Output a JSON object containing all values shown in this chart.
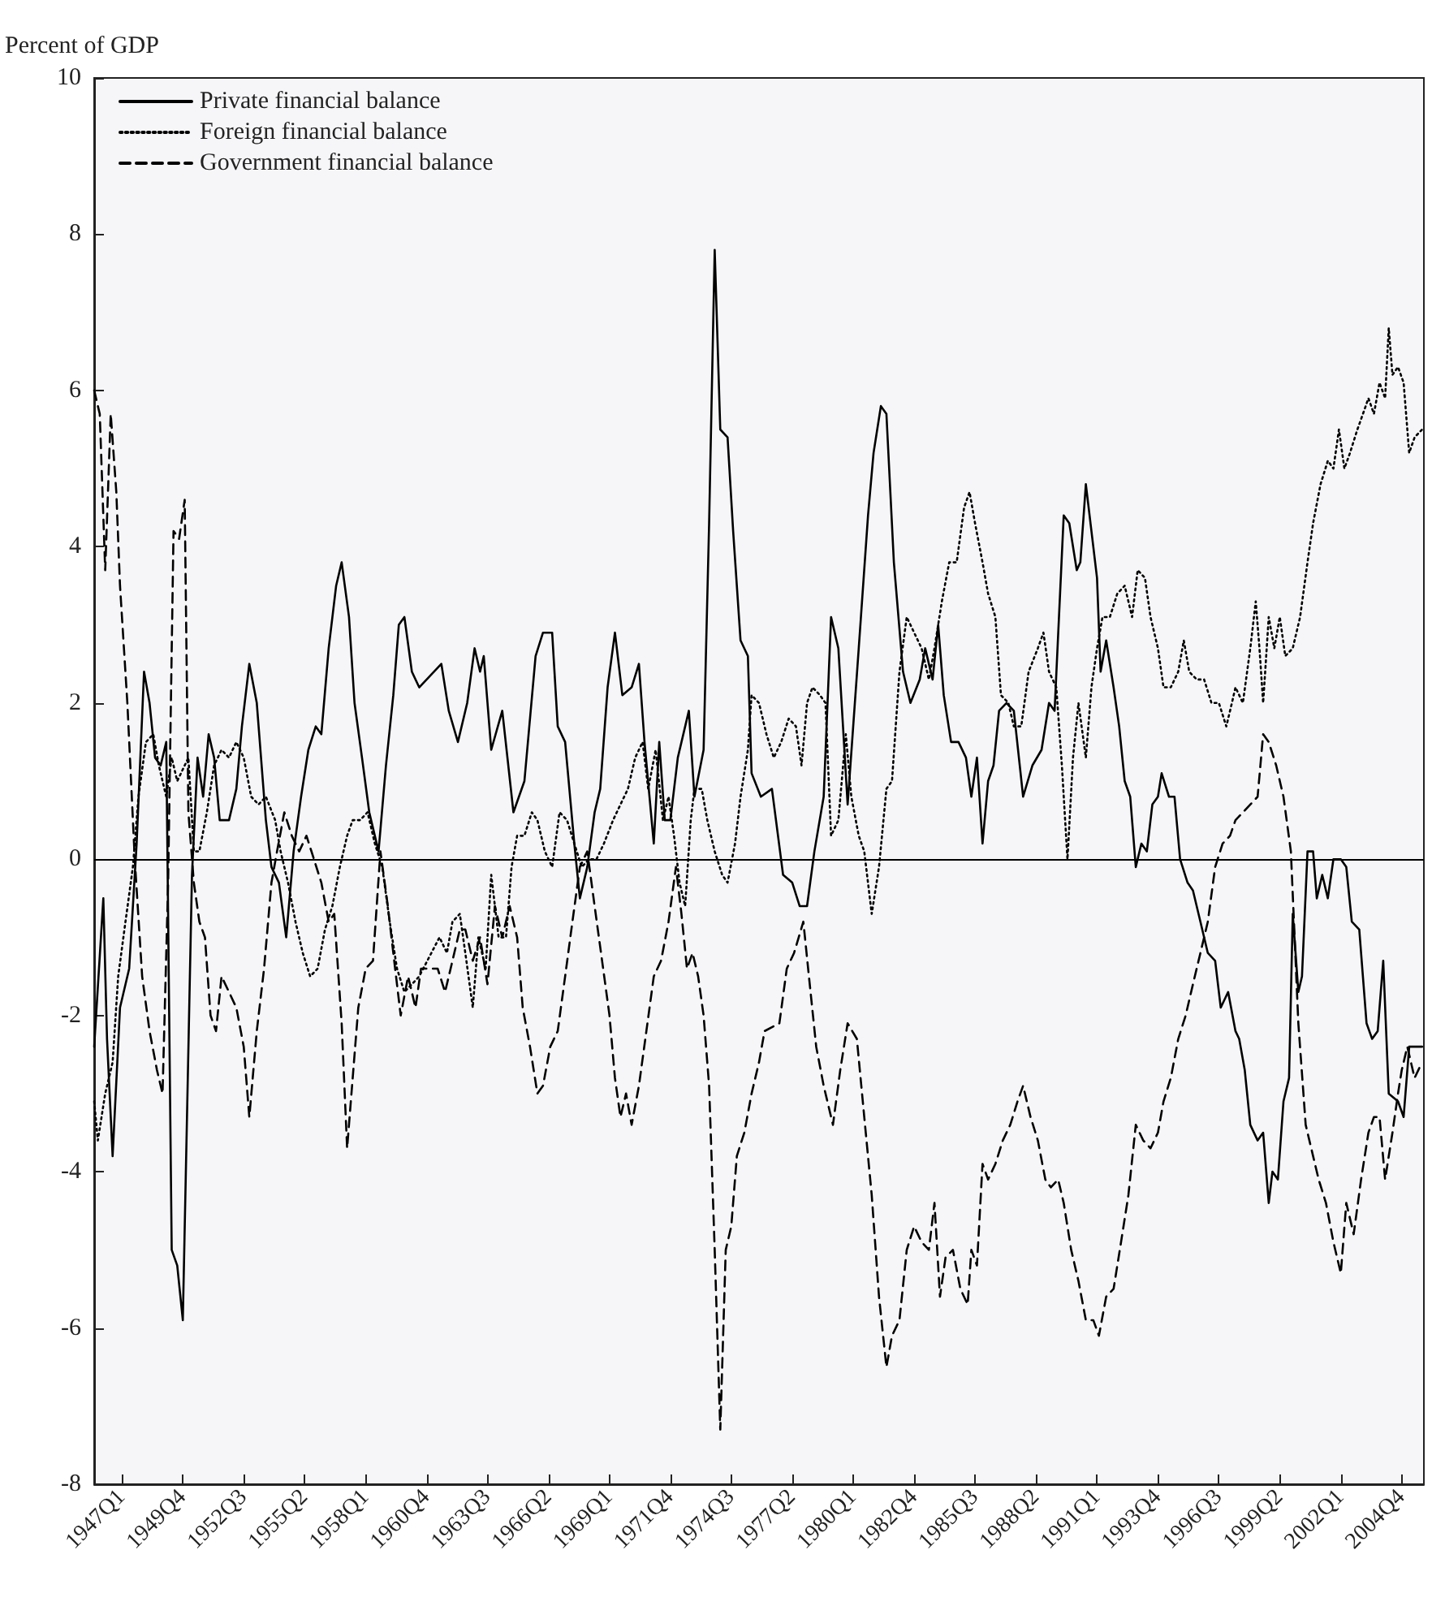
{
  "chart_data": {
    "type": "line",
    "ylabel": "Percent of GDP",
    "xlim": [
      "1945-10",
      "2005-10"
    ],
    "ylim": [
      -8,
      10
    ],
    "yticks": [
      -8,
      -6,
      -4,
      -2,
      0,
      2,
      4,
      6,
      8,
      10
    ],
    "xticks": [
      {
        "value": "1947-01",
        "label": "1947Q1"
      },
      {
        "value": "1949-10",
        "label": "1949Q4"
      },
      {
        "value": "1952-07",
        "label": "1952Q3"
      },
      {
        "value": "1955-04",
        "label": "1955Q2"
      },
      {
        "value": "1958-01",
        "label": "1958Q1"
      },
      {
        "value": "1960-10",
        "label": "1960Q4"
      },
      {
        "value": "1963-07",
        "label": "1963Q3"
      },
      {
        "value": "1966-04",
        "label": "1966Q2"
      },
      {
        "value": "1969-01",
        "label": "1969Q1"
      },
      {
        "value": "1971-10",
        "label": "1971Q4"
      },
      {
        "value": "1974-07",
        "label": "1974Q3"
      },
      {
        "value": "1977-04",
        "label": "1977Q2"
      },
      {
        "value": "1980-01",
        "label": "1980Q1"
      },
      {
        "value": "1982-10",
        "label": "1982Q4"
      },
      {
        "value": "1985-07",
        "label": "1985Q3"
      },
      {
        "value": "1988-04",
        "label": "1988Q2"
      },
      {
        "value": "1991-01",
        "label": "1991Q1"
      },
      {
        "value": "1993-10",
        "label": "1993Q4"
      },
      {
        "value": "1996-07",
        "label": "1996Q3"
      },
      {
        "value": "1999-04",
        "label": "1999Q2"
      },
      {
        "value": "2002-01",
        "label": "2002Q1"
      },
      {
        "value": "2004-10",
        "label": "2004Q4"
      }
    ],
    "grid": false,
    "legend": "top left",
    "marker": "none",
    "ref_lines": [
      {
        "axis": "y",
        "value": 0,
        "color": "#000000",
        "line_style": "solid"
      }
    ],
    "series": [
      {
        "name": "Private financial balance",
        "color": "#000000",
        "line_style": "solid",
        "x": [
          "1945-10",
          "1946-03",
          "1946-05",
          "1946-08",
          "1946-12",
          "1947-05",
          "1947-09",
          "1948-01",
          "1948-04",
          "1948-07",
          "1948-10",
          "1949-01",
          "1949-04",
          "1949-07",
          "1949-10",
          "1950-03",
          "1950-06",
          "1950-09",
          "1950-12",
          "1951-03",
          "1951-06",
          "1951-11",
          "1952-03",
          "1952-06",
          "1952-10",
          "1953-02",
          "1953-07",
          "1953-10",
          "1954-02",
          "1954-06",
          "1954-10",
          "1955-02",
          "1955-06",
          "1955-10",
          "1956-01",
          "1956-05",
          "1956-09",
          "1956-12",
          "1957-04",
          "1957-07",
          "1957-11",
          "1958-03",
          "1958-08",
          "1958-12",
          "1959-04",
          "1959-07",
          "1959-10",
          "1960-02",
          "1960-06",
          "1961-06",
          "1961-10",
          "1962-03",
          "1962-08",
          "1962-12",
          "1963-03",
          "1963-05",
          "1963-09",
          "1964-03",
          "1964-09",
          "1965-03",
          "1965-09",
          "1966-01",
          "1966-06",
          "1966-09",
          "1967-01",
          "1967-06",
          "1967-09",
          "1968-01",
          "1968-05",
          "1968-08",
          "1968-12",
          "1969-04",
          "1969-08",
          "1970-01",
          "1970-05",
          "1970-08",
          "1971-01",
          "1971-04",
          "1971-07",
          "1971-10",
          "1972-02",
          "1972-08",
          "1972-11",
          "1973-04",
          "1973-07",
          "1973-10",
          "1974-01",
          "1974-05",
          "1974-08",
          "1974-12",
          "1975-04",
          "1975-06",
          "1975-11",
          "1976-05",
          "1976-11",
          "1977-04",
          "1977-08",
          "1977-12",
          "1978-04",
          "1978-09",
          "1979-01",
          "1979-05",
          "1979-10",
          "1980-04",
          "1980-09",
          "1980-12",
          "1981-04",
          "1981-07",
          "1981-11",
          "1982-04",
          "1982-08",
          "1983-01",
          "1983-04",
          "1983-08",
          "1983-11",
          "1984-02",
          "1984-06",
          "1984-10",
          "1985-02",
          "1985-05",
          "1985-08",
          "1985-11",
          "1986-02",
          "1986-05",
          "1986-08",
          "1986-12",
          "1987-04",
          "1987-09",
          "1988-02",
          "1988-07",
          "1988-11",
          "1989-02",
          "1989-07",
          "1989-10",
          "1990-02",
          "1990-04",
          "1990-07",
          "1990-10",
          "1991-01",
          "1991-03",
          "1991-06",
          "1991-10",
          "1992-01",
          "1992-04",
          "1992-07",
          "1992-10",
          "1993-01",
          "1993-04",
          "1993-07",
          "1993-10",
          "1993-12",
          "1994-04",
          "1994-07",
          "1994-10",
          "1995-02",
          "1995-05",
          "1995-09",
          "1996-01",
          "1996-05",
          "1996-08",
          "1996-12",
          "1997-04",
          "1997-06",
          "1997-09",
          "1997-12",
          "1998-04",
          "1998-07",
          "1998-10",
          "1998-12",
          "1999-03",
          "1999-06",
          "1999-09",
          "1999-11",
          "2000-02",
          "2000-04",
          "2000-07",
          "2000-10",
          "2000-12",
          "2001-03",
          "2001-06",
          "2001-09",
          "2002-01",
          "2002-04",
          "2002-07",
          "2002-11",
          "2003-03",
          "2003-06",
          "2003-09",
          "2003-12",
          "2004-03",
          "2004-08",
          "2004-11",
          "2005-02",
          "2005-05",
          "2005-09"
        ],
        "values": [
          -2.4,
          -0.5,
          -2.3,
          -3.8,
          -1.9,
          -1.4,
          0.2,
          2.4,
          2.0,
          1.3,
          1.2,
          1.5,
          -5.0,
          -5.2,
          -5.9,
          -0.2,
          1.3,
          0.8,
          1.6,
          1.3,
          0.5,
          0.5,
          0.9,
          1.7,
          2.5,
          2.0,
          0.5,
          -0.1,
          -0.3,
          -1.0,
          0.1,
          0.8,
          1.4,
          1.7,
          1.6,
          2.7,
          3.5,
          3.8,
          3.1,
          2.0,
          1.3,
          0.6,
          0.1,
          1.2,
          2.1,
          3.0,
          3.1,
          2.4,
          2.2,
          2.5,
          1.9,
          1.5,
          2.0,
          2.7,
          2.4,
          2.6,
          1.4,
          1.9,
          0.6,
          1.0,
          2.6,
          2.9,
          2.9,
          1.7,
          1.5,
          0.2,
          -0.5,
          -0.1,
          0.6,
          0.9,
          2.2,
          2.9,
          2.1,
          2.2,
          2.5,
          1.5,
          0.2,
          1.5,
          0.5,
          0.5,
          1.3,
          1.9,
          0.8,
          1.4,
          4.3,
          7.8,
          5.5,
          5.4,
          4.2,
          2.8,
          2.6,
          1.1,
          0.8,
          0.9,
          -0.2,
          -0.3,
          -0.6,
          -0.6,
          0.1,
          0.8,
          3.1,
          2.7,
          0.7,
          2.7,
          4.4,
          5.2,
          5.8,
          5.7,
          3.8,
          2.4,
          2.0,
          2.3,
          2.7,
          2.3,
          3.0,
          2.1,
          1.5,
          1.5,
          1.3,
          0.8,
          1.3,
          0.2,
          1.0,
          1.2,
          1.9,
          2.0,
          1.9,
          0.8,
          1.2,
          1.4,
          2.0,
          1.9,
          4.4,
          4.3,
          3.7,
          3.8,
          4.8,
          4.2,
          3.6,
          2.4,
          2.8,
          2.2,
          1.7,
          1.0,
          0.8,
          -0.1,
          0.2,
          0.1,
          0.7,
          0.8,
          1.1,
          0.8,
          0.8,
          0.0,
          -0.3,
          -0.4,
          -0.8,
          -1.2,
          -1.3,
          -1.9,
          -1.7,
          -2.2,
          -2.3,
          -2.7,
          -3.4,
          -3.6,
          -3.5,
          -4.4,
          -4.0,
          -4.1,
          -3.1,
          -2.8,
          -0.7,
          -1.7,
          -1.5,
          0.1,
          0.1,
          -0.5,
          -0.2,
          -0.5,
          0.0,
          0.0,
          -0.1,
          -0.8,
          -0.9,
          -2.1,
          -2.3,
          -2.2,
          -1.3,
          -3.0,
          -3.1,
          -3.3,
          -2.4,
          -2.4,
          -2.4
        ]
      },
      {
        "name": "Foreign financial balance",
        "color": "#000000",
        "line_style": "dotted",
        "x": [
          "1945-10",
          "1945-12",
          "1946-04",
          "1946-08",
          "1946-11",
          "1947-03",
          "1947-07",
          "1947-10",
          "1948-02",
          "1948-06",
          "1948-09",
          "1949-01",
          "1949-04",
          "1949-07",
          "1949-11",
          "1950-01",
          "1950-04",
          "1950-07",
          "1950-11",
          "1951-03",
          "1951-07",
          "1951-11",
          "1952-03",
          "1952-07",
          "1952-11",
          "1953-03",
          "1953-07",
          "1953-12",
          "1954-03",
          "1954-07",
          "1954-11",
          "1955-03",
          "1955-07",
          "1955-11",
          "1956-03",
          "1956-07",
          "1956-11",
          "1957-03",
          "1957-06",
          "1957-10",
          "1958-02",
          "1958-06",
          "1958-10",
          "1959-02",
          "1959-06",
          "1959-10",
          "1960-02",
          "1960-06",
          "1961-05",
          "1961-09",
          "1961-12",
          "1962-04",
          "1962-07",
          "1962-11",
          "1963-02",
          "1963-06",
          "1963-09",
          "1964-01",
          "1964-05",
          "1964-08",
          "1964-11",
          "1965-03",
          "1965-07",
          "1965-10",
          "1966-02",
          "1966-06",
          "1966-10",
          "1967-02",
          "1967-06",
          "1967-10",
          "1968-02",
          "1968-06",
          "1968-10",
          "1969-03",
          "1969-07",
          "1969-11",
          "1970-03",
          "1970-07",
          "1970-10",
          "1971-02",
          "1971-06",
          "1971-09",
          "1971-12",
          "1972-03",
          "1972-06",
          "1972-09",
          "1972-11",
          "1973-03",
          "1973-06",
          "1973-10",
          "1974-02",
          "1974-05",
          "1974-09",
          "1974-12",
          "1975-04",
          "1975-06",
          "1975-10",
          "1976-02",
          "1976-06",
          "1976-10",
          "1977-02",
          "1977-06",
          "1977-09",
          "1977-12",
          "1978-03",
          "1978-07",
          "1978-10",
          "1979-01",
          "1979-05",
          "1979-09",
          "1979-12",
          "1980-04",
          "1980-07",
          "1980-11",
          "1981-03",
          "1981-07",
          "1981-10",
          "1982-02",
          "1982-06",
          "1982-10",
          "1983-02",
          "1983-06",
          "1983-09",
          "1984-01",
          "1984-05",
          "1984-09",
          "1985-01",
          "1985-04",
          "1985-07",
          "1985-11",
          "1986-02",
          "1986-06",
          "1986-09",
          "1987-01",
          "1987-04",
          "1987-08",
          "1987-12",
          "1988-05",
          "1988-08",
          "1988-11",
          "1989-03",
          "1989-06",
          "1989-09",
          "1989-12",
          "1990-03",
          "1990-07",
          "1990-10",
          "1991-01",
          "1991-04",
          "1991-08",
          "1991-12",
          "1992-04",
          "1992-08",
          "1992-11",
          "1993-03",
          "1993-06",
          "1993-10",
          "1994-01",
          "1994-05",
          "1994-09",
          "1994-12",
          "1995-03",
          "1995-07",
          "1995-11",
          "1996-03",
          "1996-07",
          "1996-11",
          "1997-02",
          "1997-04",
          "1997-08",
          "1997-12",
          "1998-03",
          "1998-05",
          "1998-07",
          "1998-10",
          "1999-01",
          "1999-04",
          "1999-07",
          "1999-11",
          "2000-03",
          "2000-07",
          "2000-10",
          "2001-02",
          "2001-06",
          "2001-09",
          "2001-12",
          "2002-03",
          "2002-06",
          "2002-10",
          "2003-01",
          "2003-04",
          "2003-07",
          "2003-10",
          "2004-01",
          "2004-03",
          "2004-05",
          "2004-08",
          "2004-11",
          "2005-02",
          "2005-05",
          "2005-09"
        ],
        "values": [
          -3.1,
          -3.6,
          -3.0,
          -2.6,
          -1.5,
          -0.8,
          -0.1,
          0.8,
          1.5,
          1.6,
          1.2,
          0.8,
          1.3,
          1.0,
          1.2,
          1.3,
          0.1,
          0.1,
          0.6,
          1.2,
          1.4,
          1.3,
          1.5,
          1.3,
          0.8,
          0.7,
          0.8,
          0.5,
          0.1,
          -0.3,
          -0.8,
          -1.2,
          -1.5,
          -1.4,
          -0.9,
          -0.6,
          -0.1,
          0.3,
          0.5,
          0.5,
          0.6,
          0.2,
          -0.1,
          -0.8,
          -1.4,
          -1.7,
          -1.6,
          -1.5,
          -1.0,
          -1.2,
          -0.8,
          -0.7,
          -1.2,
          -1.9,
          -1.0,
          -1.4,
          -0.2,
          -1.0,
          -1.0,
          -0.1,
          0.3,
          0.3,
          0.6,
          0.5,
          0.1,
          -0.1,
          0.6,
          0.5,
          0.2,
          -0.1,
          0.0,
          0.0,
          0.2,
          0.5,
          0.7,
          0.9,
          1.3,
          1.5,
          0.9,
          1.4,
          0.5,
          0.8,
          0.3,
          -0.3,
          -0.6,
          0.5,
          0.9,
          0.9,
          0.5,
          0.1,
          -0.2,
          -0.3,
          0.2,
          0.8,
          1.4,
          2.1,
          2.0,
          1.6,
          1.3,
          1.5,
          1.8,
          1.7,
          1.2,
          2.0,
          2.2,
          2.1,
          2.0,
          0.3,
          0.5,
          1.6,
          0.8,
          0.3,
          0.1,
          -0.7,
          -0.1,
          0.9,
          1.0,
          2.4,
          3.1,
          2.9,
          2.7,
          2.3,
          2.7,
          3.3,
          3.8,
          3.8,
          4.5,
          4.7,
          4.3,
          3.8,
          3.4,
          3.1,
          2.1,
          2.0,
          1.7,
          1.7,
          2.4,
          2.7,
          2.9,
          2.4,
          2.2,
          1.2,
          0.0,
          1.3,
          2.0,
          1.3,
          2.2,
          2.7,
          3.1,
          3.1,
          3.4,
          3.5,
          3.1,
          3.7,
          3.6,
          3.1,
          2.7,
          2.2,
          2.2,
          2.4,
          2.8,
          2.4,
          2.3,
          2.3,
          2.0,
          2.0,
          1.7,
          2.0,
          2.2,
          2.0,
          2.7,
          3.3,
          2.7,
          2.0,
          3.1,
          2.7,
          3.1,
          2.6,
          2.7,
          3.1,
          3.8,
          4.3,
          4.8,
          5.1,
          5.0,
          5.5,
          5.0,
          5.2,
          5.5,
          5.7,
          5.9,
          5.7,
          6.1,
          5.9,
          6.8,
          6.2,
          6.3,
          6.1,
          5.2,
          5.4,
          5.5
        ]
      },
      {
        "name": "Government financial balance",
        "color": "#000000",
        "line_style": "dashed",
        "x": [
          "1945-10",
          "1946-01",
          "1946-04",
          "1946-07",
          "1946-10",
          "1946-12",
          "1947-04",
          "1947-08",
          "1947-12",
          "1948-04",
          "1948-08",
          "1948-11",
          "1949-02",
          "1949-05",
          "1949-08",
          "1949-11",
          "1950-01",
          "1950-04",
          "1950-07",
          "1950-10",
          "1951-01",
          "1951-04",
          "1951-07",
          "1951-11",
          "1952-03",
          "1952-07",
          "1952-10",
          "1953-02",
          "1953-06",
          "1953-10",
          "1954-01",
          "1954-05",
          "1954-09",
          "1955-01",
          "1955-05",
          "1955-09",
          "1956-01",
          "1956-05",
          "1956-08",
          "1956-12",
          "1957-03",
          "1957-05",
          "1957-09",
          "1958-01",
          "1958-05",
          "1958-09",
          "1959-01",
          "1959-05",
          "1959-08",
          "1959-12",
          "1960-04",
          "1960-07",
          "1961-04",
          "1961-08",
          "1961-12",
          "1962-04",
          "1962-07",
          "1962-11",
          "1963-03",
          "1963-07",
          "1963-11",
          "1964-03",
          "1964-07",
          "1964-11",
          "1965-02",
          "1965-06",
          "1965-10",
          "1966-01",
          "1966-05",
          "1966-09",
          "1967-01",
          "1967-05",
          "1967-09",
          "1968-01",
          "1968-05",
          "1968-09",
          "1969-01",
          "1969-04",
          "1969-07",
          "1969-10",
          "1970-01",
          "1970-05",
          "1970-09",
          "1971-01",
          "1971-05",
          "1971-09",
          "1972-01",
          "1972-04",
          "1972-07",
          "1972-10",
          "1973-01",
          "1973-04",
          "1973-07",
          "1973-10",
          "1974-01",
          "1974-04",
          "1974-07",
          "1974-10",
          "1975-02",
          "1975-06",
          "1975-10",
          "1976-01",
          "1976-09",
          "1977-01",
          "1977-05",
          "1977-10",
          "1978-01",
          "1978-05",
          "1978-09",
          "1979-02",
          "1979-06",
          "1979-10",
          "1980-03",
          "1980-07",
          "1980-11",
          "1981-03",
          "1981-07",
          "1981-10",
          "1982-02",
          "1982-06",
          "1982-10",
          "1983-02",
          "1983-06",
          "1983-09",
          "1983-12",
          "1984-03",
          "1984-07",
          "1984-11",
          "1985-03",
          "1985-05",
          "1985-08",
          "1985-11",
          "1986-02",
          "1986-06",
          "1986-10",
          "1987-02",
          "1987-06",
          "1987-09",
          "1988-01",
          "1988-05",
          "1988-09",
          "1988-12",
          "1989-04",
          "1989-07",
          "1989-11",
          "1990-03",
          "1990-07",
          "1990-11",
          "1991-02",
          "1991-06",
          "1991-10",
          "1992-02",
          "1992-06",
          "1992-10",
          "1993-02",
          "1993-06",
          "1993-10",
          "1994-01",
          "1994-05",
          "1994-09",
          "1995-01",
          "1995-05",
          "1995-09",
          "1996-01",
          "1996-05",
          "1996-09",
          "1997-01",
          "1997-04",
          "1997-08",
          "1997-12",
          "1998-04",
          "1998-07",
          "1998-10",
          "1999-02",
          "1999-06",
          "1999-10",
          "2000-02",
          "2000-06",
          "2000-10",
          "2001-01",
          "2001-05",
          "2001-09",
          "2002-01",
          "2002-04",
          "2002-08",
          "2002-12",
          "2003-04",
          "2003-07",
          "2003-10",
          "2004-01",
          "2004-05",
          "2004-08",
          "2004-10",
          "2005-01",
          "2005-05",
          "2005-09"
        ],
        "values": [
          6.0,
          5.7,
          3.7,
          5.7,
          4.7,
          3.5,
          2.0,
          0.0,
          -1.5,
          -2.2,
          -2.7,
          -3.0,
          -0.3,
          4.2,
          4.1,
          4.6,
          0.6,
          -0.3,
          -0.8,
          -1.0,
          -2.0,
          -2.2,
          -1.5,
          -1.7,
          -1.9,
          -2.4,
          -3.3,
          -2.2,
          -1.4,
          -0.3,
          0.1,
          0.6,
          0.3,
          0.1,
          0.3,
          0.0,
          -0.3,
          -0.8,
          -0.7,
          -2.1,
          -3.7,
          -3.1,
          -1.9,
          -1.4,
          -1.3,
          0.1,
          -0.6,
          -1.4,
          -2.0,
          -1.5,
          -1.9,
          -1.4,
          -1.4,
          -1.7,
          -1.3,
          -0.9,
          -0.9,
          -1.3,
          -1.0,
          -1.6,
          -0.6,
          -1.0,
          -0.6,
          -1.0,
          -1.9,
          -2.4,
          -3.0,
          -2.9,
          -2.4,
          -2.2,
          -1.5,
          -0.8,
          -0.1,
          0.1,
          -0.6,
          -1.3,
          -2.0,
          -2.8,
          -3.3,
          -3.0,
          -3.4,
          -2.9,
          -2.2,
          -1.5,
          -1.3,
          -0.8,
          -0.1,
          -0.7,
          -1.4,
          -1.2,
          -1.5,
          -2.0,
          -2.9,
          -5.0,
          -7.3,
          -5.0,
          -4.7,
          -3.8,
          -3.5,
          -3.0,
          -2.6,
          -2.2,
          -2.1,
          -1.4,
          -1.2,
          -0.8,
          -1.5,
          -2.4,
          -2.9,
          -3.4,
          -2.7,
          -2.1,
          -2.3,
          -3.3,
          -4.3,
          -5.6,
          -6.5,
          -6.1,
          -5.9,
          -5.0,
          -4.7,
          -4.9,
          -5.0,
          -4.4,
          -5.6,
          -5.1,
          -5.0,
          -5.5,
          -5.7,
          -5.0,
          -5.2,
          -3.9,
          -4.1,
          -3.9,
          -3.6,
          -3.4,
          -3.1,
          -2.9,
          -3.3,
          -3.6,
          -4.1,
          -4.2,
          -4.1,
          -4.4,
          -5.0,
          -5.4,
          -5.9,
          -5.9,
          -6.1,
          -5.6,
          -5.5,
          -4.9,
          -4.3,
          -3.4,
          -3.6,
          -3.7,
          -3.5,
          -3.1,
          -2.8,
          -2.3,
          -2.0,
          -1.6,
          -1.2,
          -0.8,
          -0.1,
          0.2,
          0.3,
          0.5,
          0.6,
          0.7,
          0.8,
          1.6,
          1.5,
          1.2,
          0.8,
          0.1,
          -2.1,
          -3.4,
          -3.8,
          -4.1,
          -4.4,
          -4.9,
          -5.3,
          -4.4,
          -4.8,
          -4.1,
          -3.5,
          -3.3,
          -3.3,
          -4.1,
          -3.5,
          -3.0,
          -2.7,
          -2.4,
          -2.8,
          -2.6
        ]
      }
    ]
  }
}
